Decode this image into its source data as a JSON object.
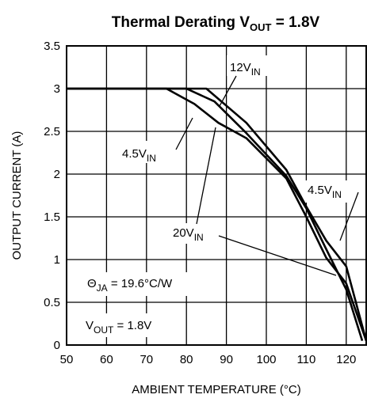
{
  "chart_data": {
    "type": "line",
    "title": {
      "main": "Thermal Derating V",
      "sub": "OUT",
      "tail": " = 1.8V"
    },
    "xlabel": "AMBIENT TEMPERATURE (°C)",
    "ylabel": "OUTPUT CURRENT (A)",
    "xlim": [
      50,
      125
    ],
    "ylim": [
      0,
      3.5
    ],
    "xticks": [
      "50",
      "60",
      "70",
      "80",
      "90",
      "100",
      "110",
      "120"
    ],
    "yticks": [
      "0",
      "0.5",
      "1",
      "1.5",
      "2",
      "2.5",
      "3",
      "3.5"
    ],
    "grid": true,
    "series": [
      {
        "label_main": "12V",
        "label_sub": "IN",
        "points": [
          [
            50,
            3
          ],
          [
            85,
            3
          ],
          [
            95,
            2.6
          ],
          [
            105,
            2.05
          ],
          [
            110,
            1.62
          ],
          [
            115,
            1.22
          ],
          [
            120,
            0.92
          ],
          [
            125,
            0.05
          ]
        ]
      },
      {
        "label_main": "4.5V",
        "label_sub": "IN",
        "points": [
          [
            50,
            3
          ],
          [
            80,
            3
          ],
          [
            87,
            2.85
          ],
          [
            95,
            2.48
          ],
          [
            105,
            1.98
          ],
          [
            110,
            1.6
          ],
          [
            115,
            1.12
          ],
          [
            120,
            0.65
          ],
          [
            124,
            0.05
          ]
        ]
      },
      {
        "label_main": "20V",
        "label_sub": "IN",
        "points": [
          [
            50,
            3
          ],
          [
            75,
            3
          ],
          [
            82,
            2.82
          ],
          [
            88,
            2.6
          ],
          [
            95,
            2.42
          ],
          [
            105,
            1.95
          ],
          [
            110,
            1.5
          ],
          [
            115,
            1.02
          ],
          [
            120,
            0.72
          ],
          [
            125,
            0.05
          ]
        ]
      }
    ],
    "annotations": [
      {
        "main": "Θ",
        "sub": "JA",
        "tail": " = 19.6°C/W"
      },
      {
        "main": "V",
        "sub": "OUT",
        "tail": " = 1.8V"
      }
    ]
  }
}
